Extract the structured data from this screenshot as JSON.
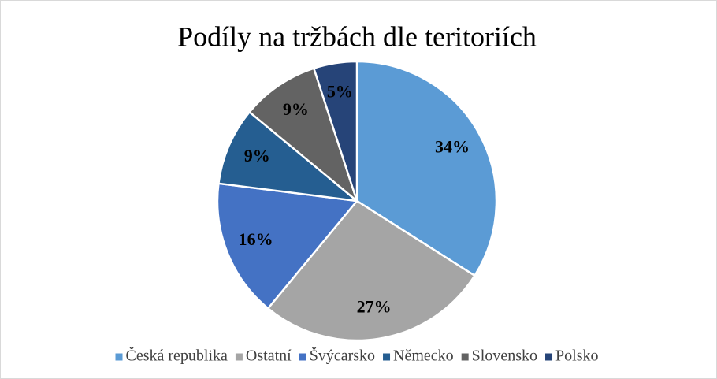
{
  "chart_data": {
    "type": "pie",
    "title": "Podíly na tržbách dle teritoriích",
    "categories": [
      "Česká republika",
      "Ostatní",
      "Švýcarsko",
      "Německo",
      "Slovensko",
      "Polsko"
    ],
    "values": [
      34,
      27,
      16,
      9,
      9,
      5
    ],
    "value_labels": [
      "34%",
      "27%",
      "16%",
      "9%",
      "9%",
      "5%"
    ],
    "colors": [
      "#5b9bd5",
      "#a5a5a5",
      "#4472c4",
      "#255e91",
      "#636363",
      "#264478"
    ],
    "legend": "bottom"
  }
}
